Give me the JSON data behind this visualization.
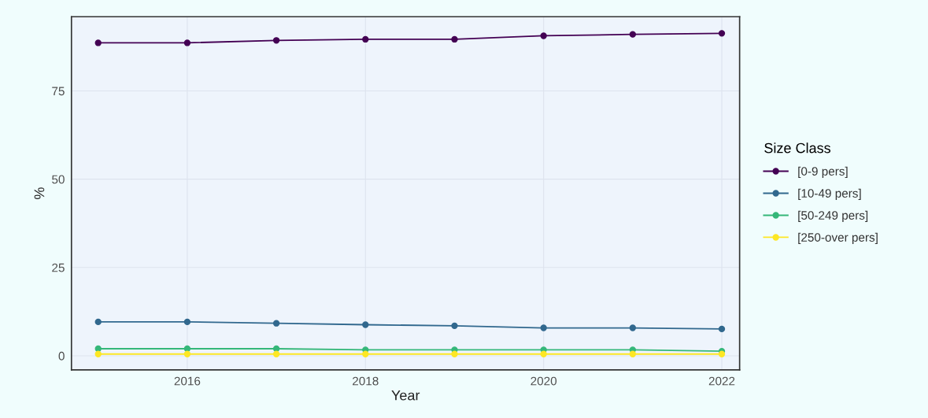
{
  "chart_data": {
    "type": "line",
    "xlabel": "Year",
    "ylabel": "%",
    "legend_title": "Size Class",
    "x": [
      2015,
      2016,
      2017,
      2018,
      2019,
      2020,
      2021,
      2022
    ],
    "series": [
      {
        "name": "[0-9 pers]",
        "color": "#440154",
        "values": [
          88.6,
          88.6,
          89.3,
          89.6,
          89.6,
          90.6,
          91.0,
          91.3
        ]
      },
      {
        "name": "[10-49 pers]",
        "color": "#31688e",
        "values": [
          9.6,
          9.6,
          9.2,
          8.8,
          8.5,
          7.9,
          7.9,
          7.6
        ]
      },
      {
        "name": "[50-249 pers]",
        "color": "#35b779",
        "values": [
          2.0,
          2.0,
          2.0,
          1.7,
          1.7,
          1.7,
          1.7,
          1.3
        ]
      },
      {
        "name": "[250-over pers]",
        "color": "#fde725",
        "values": [
          0.5,
          0.5,
          0.5,
          0.5,
          0.5,
          0.5,
          0.5,
          0.5
        ]
      }
    ],
    "xlim": [
      2014.7,
      2022.2
    ],
    "ylim": [
      -4,
      96
    ],
    "xticks": [
      2016,
      2018,
      2020,
      2022
    ],
    "yticks": [
      0,
      25,
      50,
      75
    ],
    "grid": true,
    "legend": "right",
    "marker": "circle",
    "line_style": "solid"
  }
}
